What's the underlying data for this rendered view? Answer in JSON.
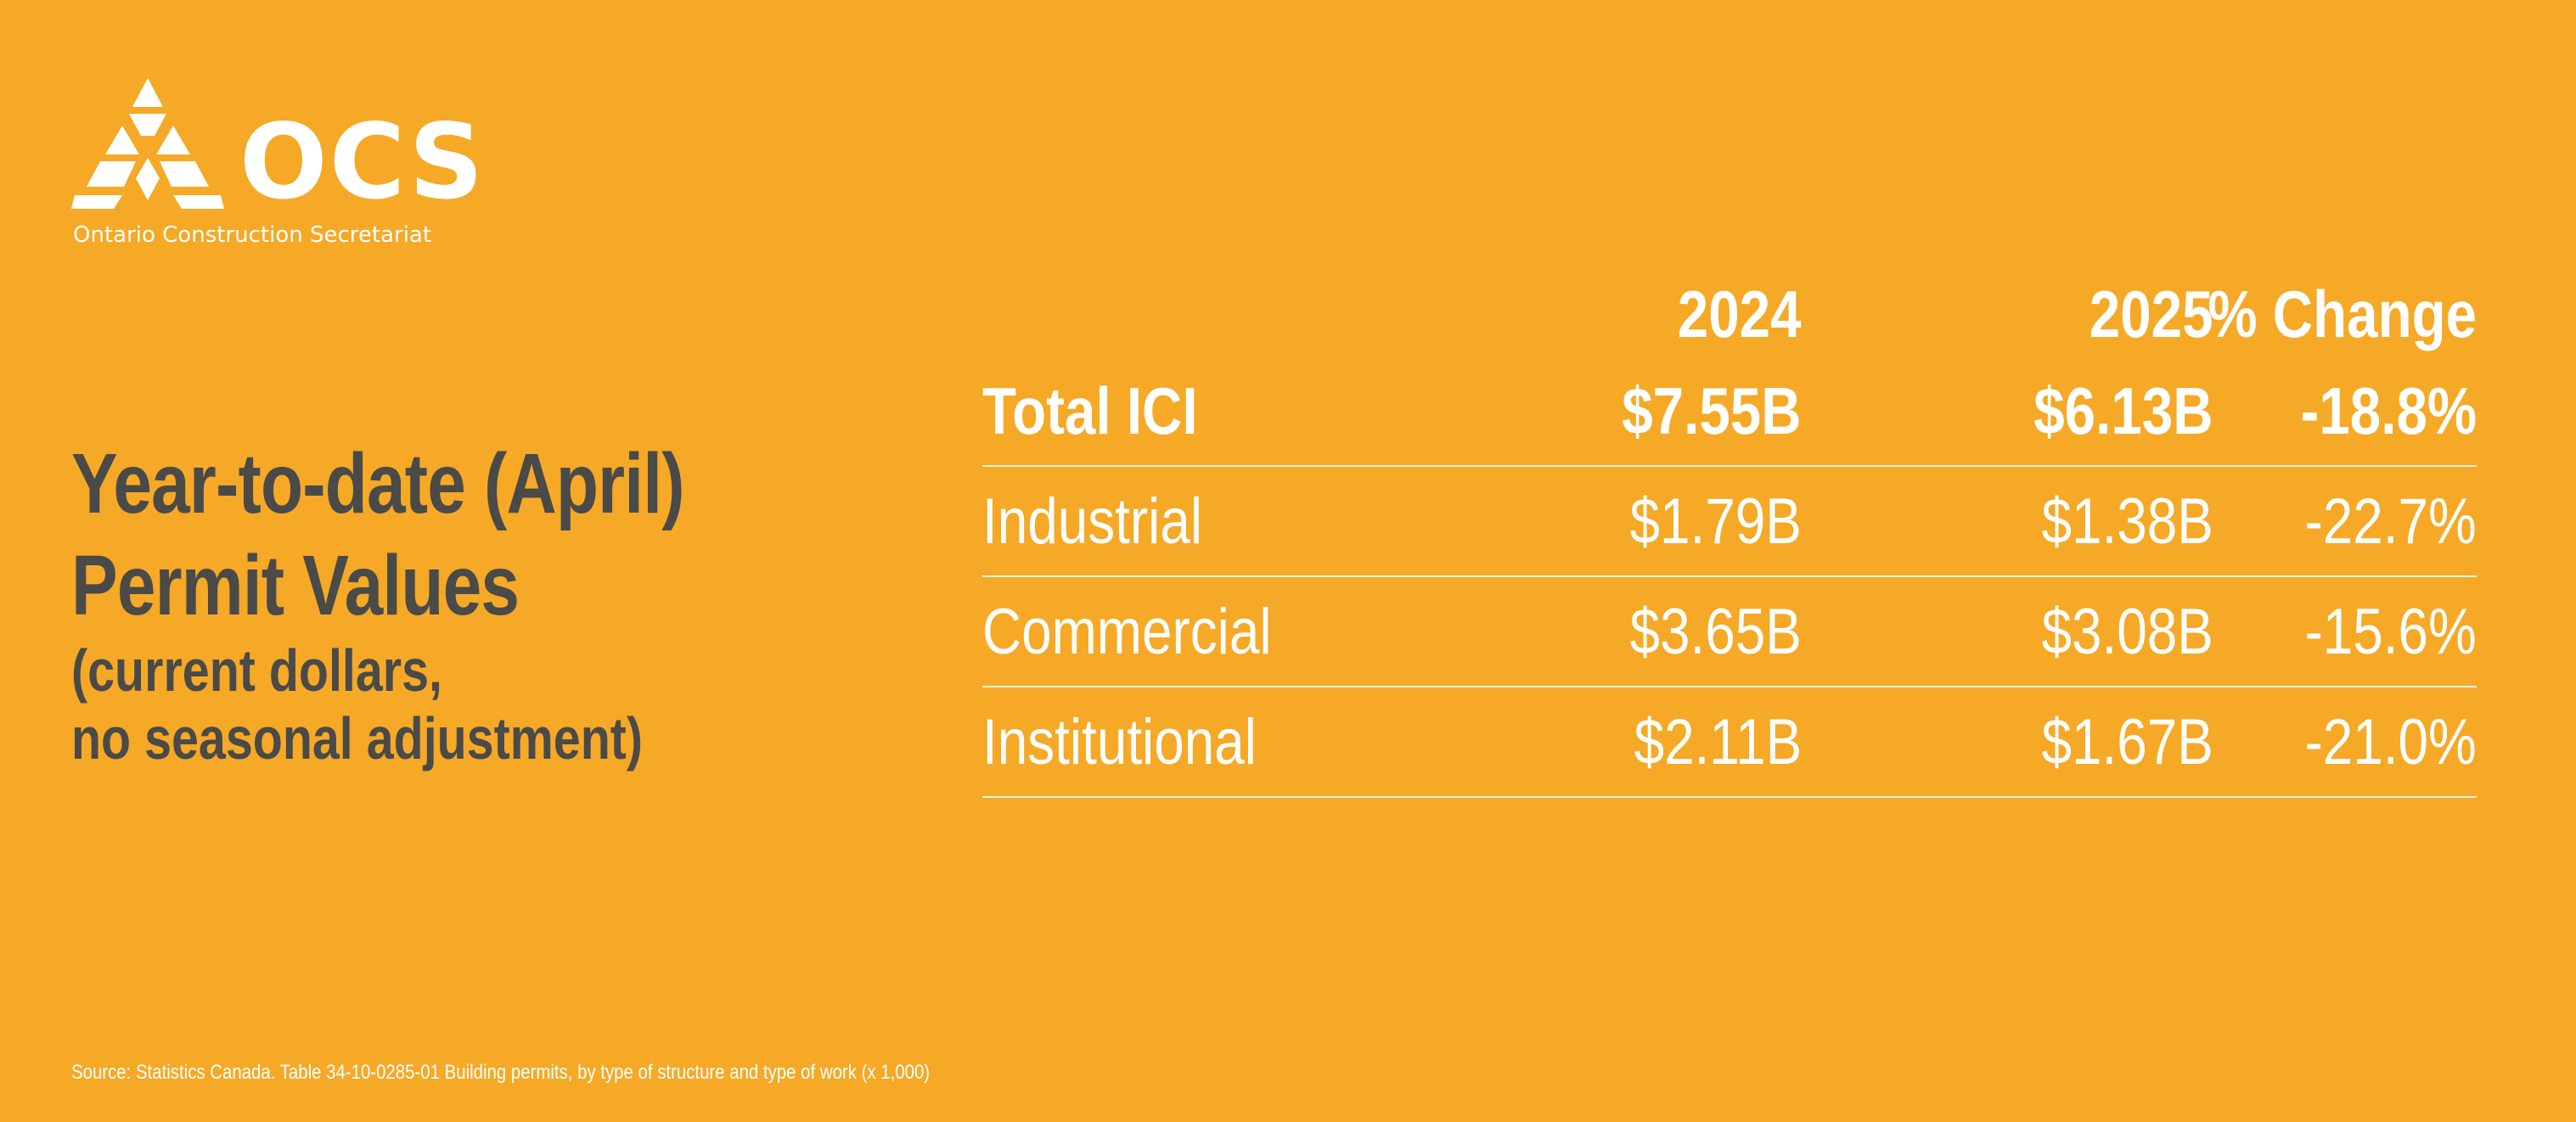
{
  "logo": {
    "wordmark": "OCS",
    "tagline": "Ontario Construction Secretariat",
    "icon": "ocs-triangle-logo"
  },
  "headline": {
    "line1": "Year-to-date (April)",
    "line2": "Permit Values",
    "line3": "(current dollars,",
    "line4": "no seasonal adjustment)"
  },
  "table": {
    "columns": [
      "",
      "2024",
      "2025",
      "% Change"
    ],
    "rows": [
      {
        "label": "Total ICI",
        "y2024": "$7.55B",
        "y2025": "$6.13B",
        "change": "-18.8%"
      },
      {
        "label": "Industrial",
        "y2024": "$1.79B",
        "y2025": "$1.38B",
        "change": "-22.7%"
      },
      {
        "label": "Commercial",
        "y2024": "$3.65B",
        "y2025": "$3.08B",
        "change": "-15.6%"
      },
      {
        "label": "Institutional",
        "y2024": "$2.11B",
        "y2025": "$1.67B",
        "change": "-21.0%"
      }
    ]
  },
  "source": "Source: Statistics Canada. Table 34-10-0285-01  Building permits, by type of structure and type of work (x 1,000)",
  "colors": {
    "background": "#F5A927",
    "headline": "#4a4a48",
    "table_text": "#ffffff"
  }
}
